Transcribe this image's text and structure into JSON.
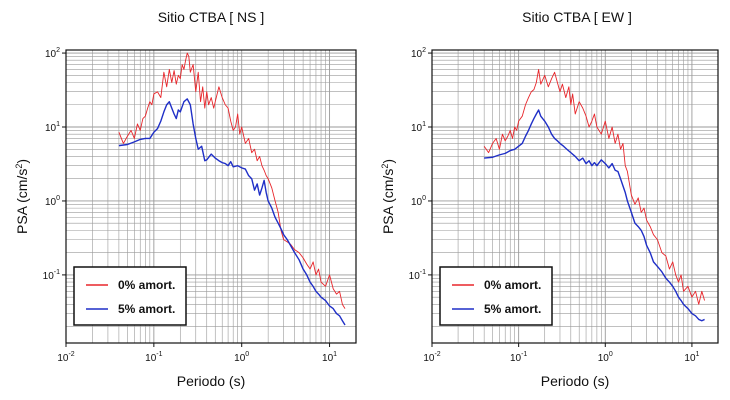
{
  "figure": {
    "background": "#ffffff",
    "grid_color": "#9a9a9a",
    "frame_color": "#111111"
  },
  "chart_data": [
    {
      "type": "line",
      "title": "Sitio CTBA [ NS ]",
      "xlabel": "Periodo (s)",
      "ylabel": "PSA (cm/s",
      "ylabel_exp": "2",
      "ylabel_close": ")",
      "xscale": "log",
      "yscale": "log",
      "xlim": [
        0.01,
        20
      ],
      "ylim": [
        0.012,
        110
      ],
      "grid": true,
      "legend_position": "bottom-left",
      "x_ticks": [
        {
          "base": "10",
          "exp": "-2",
          "value": 0.01
        },
        {
          "base": "10",
          "exp": "-1",
          "value": 0.1
        },
        {
          "base": "10",
          "exp": "0",
          "value": 1
        },
        {
          "base": "10",
          "exp": "1",
          "value": 10
        }
      ],
      "y_ticks": [
        {
          "base": "10",
          "exp": "-1",
          "value": 0.1
        },
        {
          "base": "10",
          "exp": "0",
          "value": 1
        },
        {
          "base": "10",
          "exp": "1",
          "value": 10
        },
        {
          "base": "10",
          "exp": "2",
          "value": 100
        }
      ],
      "series": [
        {
          "name": "0% amort.",
          "color": "#e8262b",
          "x": [
            0.04,
            0.045,
            0.05,
            0.055,
            0.06,
            0.065,
            0.07,
            0.075,
            0.08,
            0.085,
            0.09,
            0.095,
            0.1,
            0.11,
            0.12,
            0.13,
            0.14,
            0.15,
            0.16,
            0.17,
            0.18,
            0.19,
            0.2,
            0.21,
            0.22,
            0.23,
            0.24,
            0.25,
            0.26,
            0.28,
            0.3,
            0.32,
            0.34,
            0.36,
            0.38,
            0.4,
            0.42,
            0.45,
            0.48,
            0.5,
            0.55,
            0.6,
            0.65,
            0.7,
            0.75,
            0.8,
            0.85,
            0.9,
            0.95,
            1.0,
            1.1,
            1.2,
            1.3,
            1.4,
            1.5,
            1.6,
            1.7,
            1.8,
            1.9,
            2.0,
            2.2,
            2.4,
            2.6,
            2.8,
            3.0,
            3.3,
            3.6,
            4.0,
            4.5,
            5.0,
            5.5,
            6.0,
            6.5,
            7.0,
            7.5,
            8.0,
            9.0,
            10.0,
            11.0,
            12.0,
            13.0,
            14.0,
            15.0
          ],
          "y": [
            8.5,
            6.0,
            7.5,
            9.0,
            7.0,
            11.0,
            9.0,
            13.0,
            14.0,
            18.0,
            22.0,
            20.0,
            28.0,
            30.0,
            25.0,
            55.0,
            35.0,
            60.0,
            40.0,
            58.0,
            38.0,
            50.0,
            45.0,
            70.0,
            60.0,
            80.0,
            100.0,
            90.0,
            55.0,
            70.0,
            30.0,
            55.0,
            22.0,
            35.0,
            18.0,
            30.0,
            20.0,
            25.0,
            18.0,
            22.0,
            35.0,
            25.0,
            20.0,
            18.0,
            12.0,
            9.0,
            10.0,
            15.0,
            8.0,
            10.0,
            6.0,
            7.0,
            4.5,
            5.0,
            3.5,
            4.0,
            3.0,
            2.6,
            2.2,
            2.0,
            1.5,
            1.0,
            0.7,
            0.4,
            0.3,
            0.28,
            0.26,
            0.22,
            0.2,
            0.17,
            0.14,
            0.12,
            0.15,
            0.1,
            0.12,
            0.08,
            0.07,
            0.1,
            0.065,
            0.055,
            0.06,
            0.04,
            0.035
          ]
        },
        {
          "name": "5% amort.",
          "color": "#1f2fc7",
          "x": [
            0.04,
            0.05,
            0.06,
            0.07,
            0.08,
            0.09,
            0.1,
            0.11,
            0.12,
            0.13,
            0.14,
            0.15,
            0.16,
            0.17,
            0.18,
            0.19,
            0.2,
            0.22,
            0.24,
            0.26,
            0.28,
            0.3,
            0.32,
            0.35,
            0.38,
            0.4,
            0.45,
            0.5,
            0.55,
            0.6,
            0.65,
            0.7,
            0.75,
            0.8,
            0.9,
            1.0,
            1.1,
            1.2,
            1.3,
            1.4,
            1.5,
            1.6,
            1.7,
            1.8,
            1.9,
            2.0,
            2.2,
            2.4,
            2.6,
            2.8,
            3.0,
            3.3,
            3.6,
            4.0,
            4.5,
            5.0,
            5.5,
            6.0,
            6.5,
            7.0,
            7.5,
            8.0,
            9.0,
            10.0,
            11.0,
            12.0,
            13.0,
            14.0,
            15.0
          ],
          "y": [
            5.6,
            5.8,
            6.3,
            6.8,
            7.0,
            7.0,
            8.5,
            9.5,
            12.0,
            16.0,
            20.0,
            22.0,
            18.0,
            15.0,
            13.0,
            17.0,
            16.0,
            22.0,
            24.0,
            20.0,
            11.0,
            7.0,
            5.0,
            5.5,
            3.5,
            3.6,
            4.3,
            3.8,
            3.5,
            3.3,
            3.2,
            3.0,
            3.4,
            2.9,
            3.0,
            2.8,
            2.7,
            2.2,
            2.0,
            1.4,
            1.7,
            1.2,
            1.5,
            1.9,
            1.3,
            1.0,
            0.8,
            0.6,
            0.5,
            0.42,
            0.35,
            0.3,
            0.25,
            0.2,
            0.16,
            0.12,
            0.1,
            0.08,
            0.07,
            0.06,
            0.055,
            0.05,
            0.045,
            0.038,
            0.035,
            0.03,
            0.028,
            0.024,
            0.021
          ]
        }
      ]
    },
    {
      "type": "line",
      "title": "Sitio CTBA [ EW ]",
      "xlabel": "Periodo (s)",
      "ylabel": "PSA (cm/s",
      "ylabel_exp": "2",
      "ylabel_close": ")",
      "xscale": "log",
      "yscale": "log",
      "xlim": [
        0.01,
        20
      ],
      "ylim": [
        0.012,
        110
      ],
      "grid": true,
      "legend_position": "bottom-left",
      "x_ticks": [
        {
          "base": "10",
          "exp": "-2",
          "value": 0.01
        },
        {
          "base": "10",
          "exp": "-1",
          "value": 0.1
        },
        {
          "base": "10",
          "exp": "0",
          "value": 1
        },
        {
          "base": "10",
          "exp": "1",
          "value": 10
        }
      ],
      "y_ticks": [
        {
          "base": "10",
          "exp": "-1",
          "value": 0.1
        },
        {
          "base": "10",
          "exp": "0",
          "value": 1
        },
        {
          "base": "10",
          "exp": "1",
          "value": 10
        },
        {
          "base": "10",
          "exp": "2",
          "value": 100
        }
      ],
      "series": [
        {
          "name": "0% amort.",
          "color": "#e8262b",
          "x": [
            0.04,
            0.045,
            0.05,
            0.055,
            0.06,
            0.065,
            0.07,
            0.075,
            0.08,
            0.085,
            0.09,
            0.095,
            0.1,
            0.11,
            0.12,
            0.13,
            0.14,
            0.15,
            0.16,
            0.17,
            0.18,
            0.2,
            0.22,
            0.24,
            0.26,
            0.28,
            0.3,
            0.32,
            0.35,
            0.38,
            0.4,
            0.42,
            0.45,
            0.5,
            0.55,
            0.6,
            0.65,
            0.7,
            0.75,
            0.8,
            0.9,
            1.0,
            1.1,
            1.2,
            1.3,
            1.4,
            1.5,
            1.6,
            1.7,
            1.8,
            2.0,
            2.2,
            2.4,
            2.6,
            2.8,
            3.0,
            3.3,
            3.6,
            4.0,
            4.5,
            5.0,
            5.5,
            6.0,
            6.5,
            7.0,
            7.5,
            8.0,
            9.0,
            10.0,
            11.0,
            12.0,
            13.0,
            14.0
          ],
          "y": [
            5.5,
            4.5,
            6.0,
            7.0,
            5.0,
            8.0,
            6.5,
            7.5,
            9.0,
            7.0,
            10.0,
            9.0,
            12.0,
            14.0,
            20.0,
            25.0,
            30.0,
            32.0,
            40.0,
            60.0,
            38.0,
            50.0,
            35.0,
            45.0,
            55.0,
            40.0,
            30.0,
            38.0,
            25.0,
            35.0,
            20.0,
            28.0,
            15.0,
            22.0,
            18.0,
            14.0,
            10.0,
            12.0,
            15.0,
            10.0,
            8.0,
            12.0,
            7.0,
            10.0,
            6.0,
            8.0,
            5.0,
            6.0,
            3.0,
            2.5,
            1.2,
            0.9,
            1.1,
            0.7,
            0.8,
            0.55,
            0.45,
            0.35,
            0.3,
            0.2,
            0.18,
            0.12,
            0.15,
            0.1,
            0.08,
            0.1,
            0.06,
            0.07,
            0.05,
            0.06,
            0.04,
            0.06,
            0.045
          ]
        },
        {
          "name": "5% amort.",
          "color": "#1f2fc7",
          "x": [
            0.04,
            0.05,
            0.06,
            0.07,
            0.08,
            0.09,
            0.1,
            0.11,
            0.12,
            0.13,
            0.14,
            0.15,
            0.16,
            0.17,
            0.18,
            0.2,
            0.22,
            0.24,
            0.26,
            0.28,
            0.3,
            0.33,
            0.36,
            0.4,
            0.45,
            0.5,
            0.55,
            0.6,
            0.65,
            0.7,
            0.75,
            0.8,
            0.9,
            1.0,
            1.1,
            1.2,
            1.3,
            1.4,
            1.5,
            1.6,
            1.7,
            1.8,
            2.0,
            2.2,
            2.4,
            2.6,
            2.8,
            3.0,
            3.3,
            3.6,
            4.0,
            4.5,
            5.0,
            5.5,
            6.0,
            6.5,
            7.0,
            7.5,
            8.0,
            9.0,
            10.0,
            11.0,
            12.0,
            13.0,
            14.0
          ],
          "y": [
            3.8,
            3.9,
            4.2,
            4.4,
            4.8,
            5.0,
            5.5,
            6.0,
            7.5,
            9.0,
            11.0,
            13.0,
            15.0,
            17.0,
            14.0,
            12.0,
            10.0,
            8.0,
            7.0,
            6.5,
            6.0,
            5.5,
            5.0,
            4.5,
            4.0,
            3.5,
            3.8,
            3.2,
            3.5,
            3.0,
            3.3,
            3.0,
            3.6,
            3.2,
            2.8,
            3.2,
            2.6,
            2.5,
            2.0,
            1.6,
            1.3,
            1.0,
            0.7,
            0.5,
            0.45,
            0.4,
            0.33,
            0.25,
            0.2,
            0.15,
            0.13,
            0.11,
            0.09,
            0.08,
            0.07,
            0.06,
            0.05,
            0.045,
            0.04,
            0.035,
            0.03,
            0.028,
            0.025,
            0.024,
            0.025
          ]
        }
      ]
    }
  ]
}
